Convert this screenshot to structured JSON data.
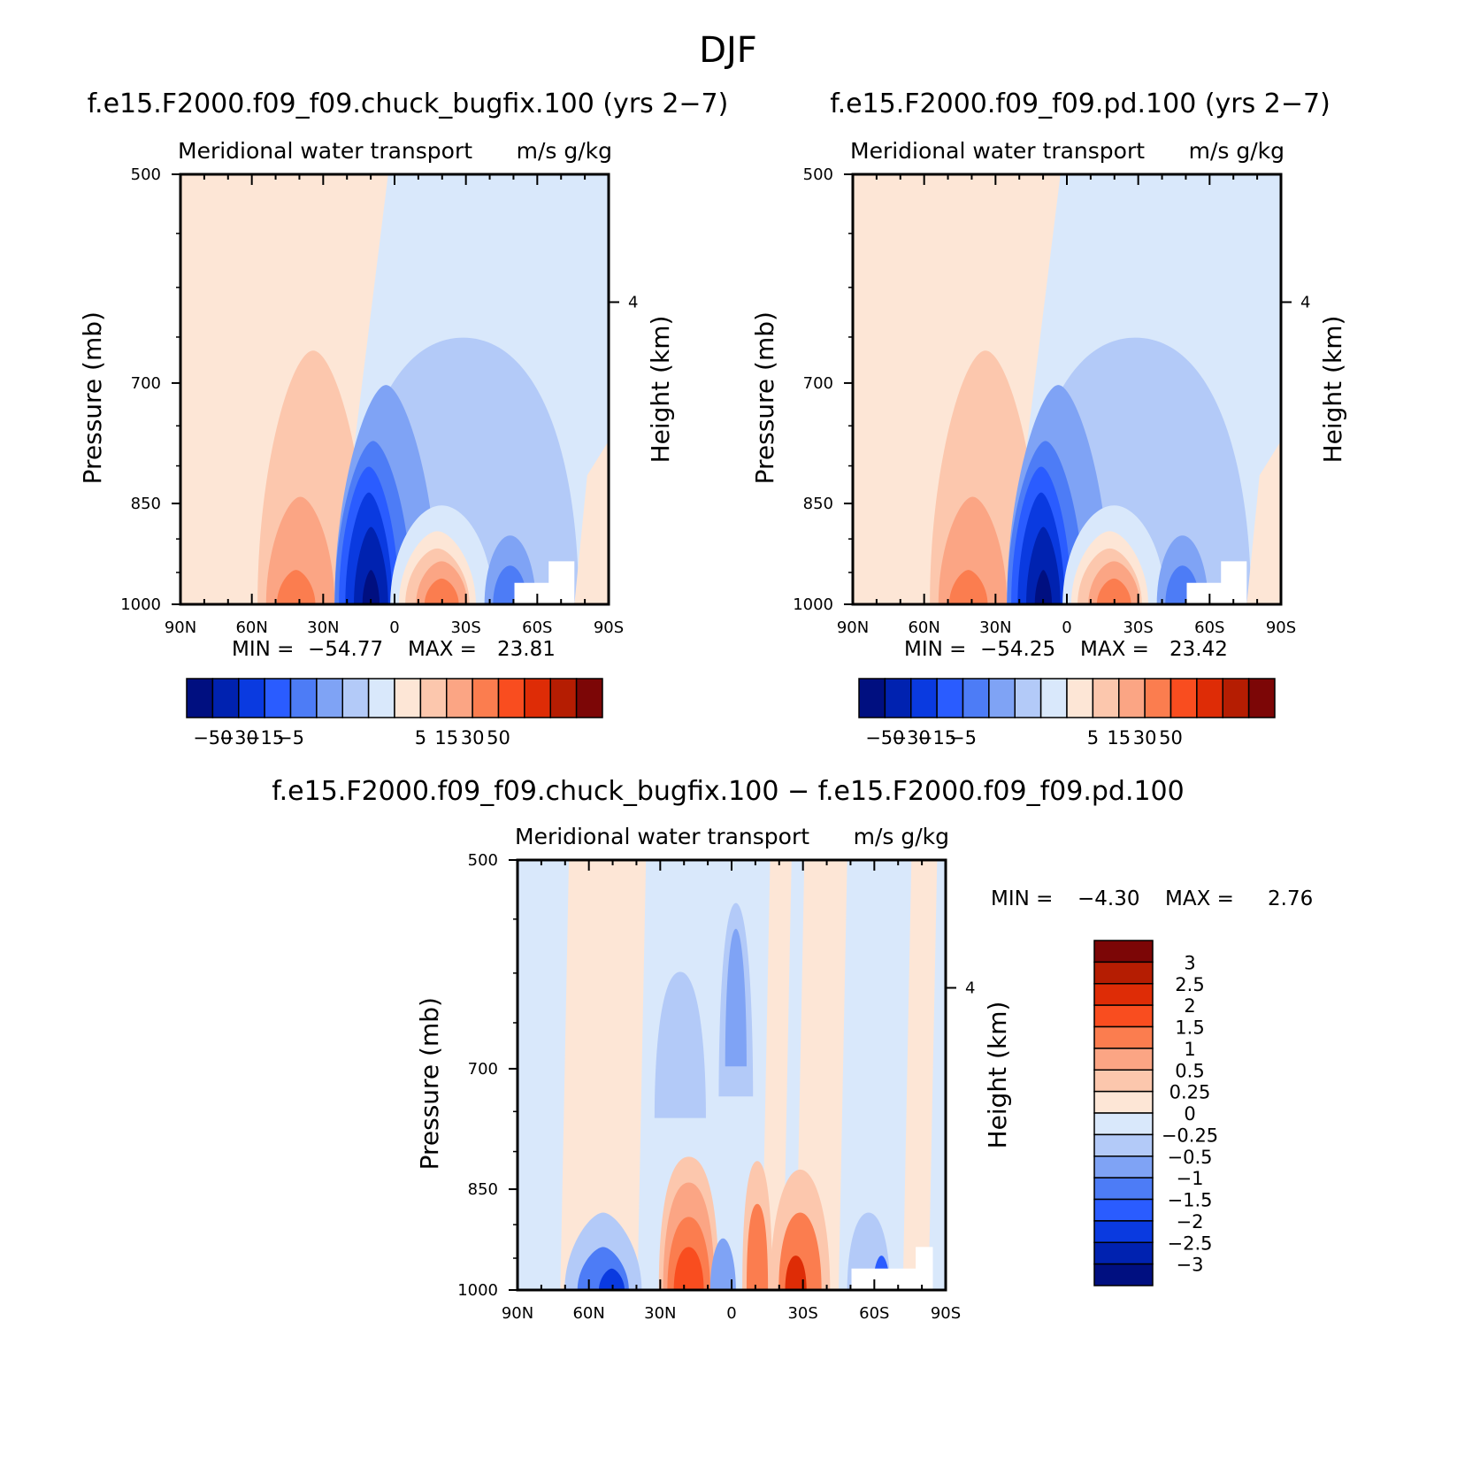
{
  "figure_title": "DJF",
  "colors": {
    "neg": [
      "#000f80",
      "#0022b0",
      "#0a3ae0",
      "#2a5cff",
      "#4d7cf6",
      "#7fa3f5",
      "#b3caf8",
      "#d9e8fb"
    ],
    "pos": [
      "#fde6d6",
      "#fcc7ad",
      "#fba584",
      "#fb7d4f",
      "#f94d1f",
      "#de2c06",
      "#b51d02",
      "#7c0606"
    ]
  },
  "chart_data": [
    {
      "type": "heatmap",
      "title": "f.e15.F2000.f09_f09.chuck_bugfix.100 (yrs 2-7)",
      "subtitle_left": "Meridional water transport",
      "subtitle_right": "m/s g/kg",
      "xlabel": "",
      "ylabel": "Pressure (mb)",
      "y2label": "Height (km)",
      "x_ticks": [
        "90N",
        "60N",
        "30N",
        "0",
        "30S",
        "60S",
        "90S"
      ],
      "y_ticks": [
        500,
        700,
        850,
        1000
      ],
      "y2_ticks": [
        4
      ],
      "y_scale": "log-pressure",
      "ylim": [
        500,
        1000
      ],
      "xlim": [
        "90N",
        "90S"
      ],
      "min_label": "MIN =",
      "min_value": "-54.77",
      "max_label": "MAX =",
      "max_value": "23.81",
      "colorbar": {
        "orientation": "horizontal",
        "labels": [
          "-50",
          "-30",
          "-15",
          "-5",
          "5",
          "15",
          "30",
          "50"
        ]
      }
    },
    {
      "type": "heatmap",
      "title": "f.e15.F2000.f09_f09.pd.100 (yrs 2-7)",
      "subtitle_left": "Meridional water transport",
      "subtitle_right": "m/s g/kg",
      "xlabel": "",
      "ylabel": "Pressure (mb)",
      "y2label": "Height (km)",
      "x_ticks": [
        "90N",
        "60N",
        "30N",
        "0",
        "30S",
        "60S",
        "90S"
      ],
      "y_ticks": [
        500,
        700,
        850,
        1000
      ],
      "y2_ticks": [
        4
      ],
      "y_scale": "log-pressure",
      "ylim": [
        500,
        1000
      ],
      "xlim": [
        "90N",
        "90S"
      ],
      "min_label": "MIN =",
      "min_value": "-54.25",
      "max_label": "MAX =",
      "max_value": "23.42",
      "colorbar": {
        "orientation": "horizontal",
        "labels": [
          "-50",
          "-30",
          "-15",
          "-5",
          "5",
          "15",
          "30",
          "50"
        ]
      }
    },
    {
      "type": "heatmap",
      "title": "f.e15.F2000.f09_f09.chuck_bugfix.100 - f.e15.F2000.f09_f09.pd.100",
      "subtitle_left": "Meridional water transport",
      "subtitle_right": "m/s g/kg",
      "xlabel": "",
      "ylabel": "Pressure (mb)",
      "y2label": "Height (km)",
      "x_ticks": [
        "90N",
        "60N",
        "30N",
        "0",
        "30S",
        "60S",
        "90S"
      ],
      "y_ticks": [
        500,
        700,
        850,
        1000
      ],
      "y2_ticks": [
        4
      ],
      "y_scale": "log-pressure",
      "ylim": [
        500,
        1000
      ],
      "xlim": [
        "90N",
        "90S"
      ],
      "min_label": "MIN =",
      "min_value": "-4.30",
      "max_label": "MAX =",
      "max_value": "2.76",
      "colorbar": {
        "orientation": "vertical",
        "labels": [
          "3",
          "2.5",
          "2",
          "1.5",
          "1",
          "0.5",
          "0.25",
          "0",
          "-0.25",
          "-0.5",
          "-1",
          "-1.5",
          "-2",
          "-2.5",
          "-3"
        ]
      }
    }
  ]
}
